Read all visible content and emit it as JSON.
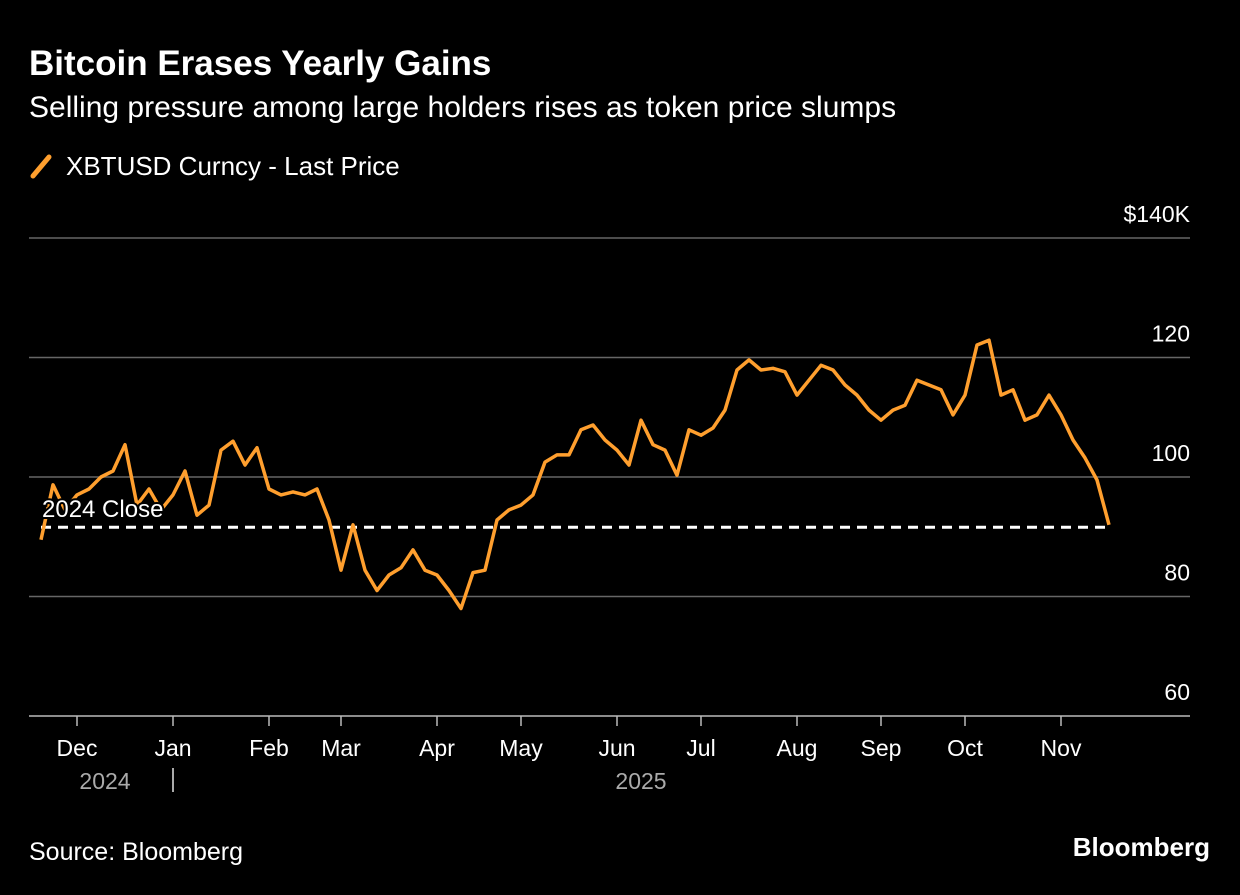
{
  "chart_data": {
    "type": "line",
    "title": "Bitcoin Erases Yearly Gains",
    "subtitle": "Selling pressure among large holders rises as token price slumps",
    "source": "Source: Bloomberg",
    "brand": "Bloomberg",
    "categories": [
      null,
      null,
      null,
      "Dec",
      null,
      null,
      null,
      null,
      null,
      null,
      null,
      "Jan",
      null,
      null,
      null,
      null,
      null,
      null,
      null,
      "Feb",
      null,
      null,
      null,
      null,
      null,
      "Mar",
      null,
      null,
      null,
      null,
      null,
      null,
      null,
      "Apr",
      null,
      null,
      null,
      null,
      null,
      null,
      "May",
      null,
      null,
      null,
      null,
      null,
      null,
      null,
      "Jun",
      null,
      null,
      null,
      null,
      null,
      null,
      "Jul",
      null,
      null,
      null,
      null,
      null,
      null,
      null,
      "Aug",
      null,
      null,
      null,
      null,
      null,
      null,
      "Sep",
      null,
      null,
      null,
      null,
      null,
      null,
      "Oct",
      null,
      null,
      null,
      null,
      null,
      null,
      null,
      "Nov",
      null,
      null,
      null,
      null
    ],
    "year_labels": [
      "2024",
      "2025"
    ],
    "series": [
      {
        "name": "XBTUSD Curncy - Last Price",
        "color": "#ff9f2e",
        "values": [
          89.5,
          98.7,
          94.5,
          97,
          98,
          100,
          101,
          105.4,
          95.3,
          98,
          94.5,
          97,
          101,
          93.6,
          95.3,
          104.5,
          106,
          102,
          104.9,
          98,
          97,
          97.5,
          97,
          98,
          92.8,
          84.4,
          92,
          84.4,
          81,
          83.6,
          84.8,
          87.8,
          84.4,
          83.6,
          81,
          78,
          84,
          84.4,
          92.8,
          94.5,
          95.3,
          97,
          102.5,
          103.7,
          103.7,
          107.9,
          108.7,
          106.2,
          104.5,
          102,
          109.5,
          105.4,
          104.5,
          100.3,
          107.9,
          107,
          108.2,
          111.2,
          117.9,
          119.6,
          117.9,
          118.2,
          117.6,
          113.7,
          116.2,
          118.7,
          117.9,
          115.4,
          113.7,
          111.2,
          109.5,
          111.2,
          112,
          116.2,
          115.4,
          114.6,
          110.4,
          113.7,
          122.1,
          122.9,
          113.7,
          114.6,
          109.5,
          110.4,
          113.7,
          110.4,
          106.2,
          103.2,
          99.5,
          92
        ]
      }
    ],
    "reference_line": {
      "label": "2024 Close",
      "value": 91.6
    },
    "ylim": [
      60,
      140
    ],
    "yticks": [
      60,
      80,
      100,
      120,
      {
        "value": 140,
        "label": "$140K"
      }
    ],
    "grid": true
  }
}
